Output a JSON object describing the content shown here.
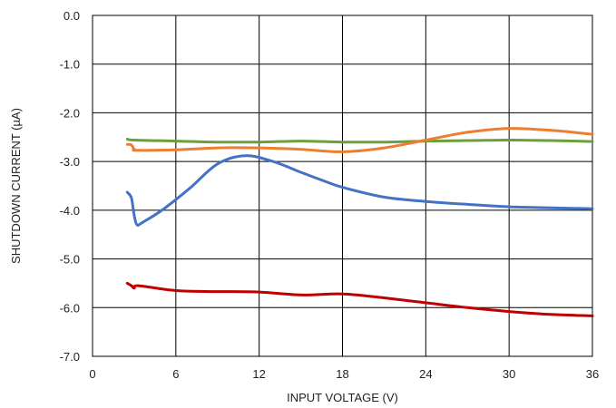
{
  "chart_data": {
    "type": "line",
    "title": "",
    "xlabel": "INPUT VOLTAGE (V)",
    "ylabel": "SHUTDOWN CURRENT (µA)",
    "xlim": [
      0,
      36
    ],
    "ylim": [
      -7.0,
      0.0
    ],
    "xticks": [
      0,
      6,
      12,
      18,
      24,
      30,
      36
    ],
    "xtick_labels": [
      "0",
      "6",
      "12",
      "18",
      "24",
      "30",
      "36"
    ],
    "yticks": [
      0,
      -1,
      -2,
      -3,
      -4,
      -5,
      -6,
      -7
    ],
    "ytick_labels": [
      "0.0",
      "-1.0",
      "-2.0",
      "-3.0",
      "-4.0",
      "-5.0",
      "-6.0",
      "-7.0"
    ],
    "grid": true,
    "legend": "none",
    "series": [
      {
        "color": "#6a9f3c",
        "x": [
          2.5,
          3,
          6,
          9,
          12,
          15,
          18,
          21,
          24,
          27,
          30,
          33,
          36
        ],
        "y": [
          -2.54,
          -2.56,
          -2.58,
          -2.6,
          -2.6,
          -2.58,
          -2.6,
          -2.6,
          -2.58,
          -2.57,
          -2.56,
          -2.57,
          -2.59
        ]
      },
      {
        "color": "#ed7d31",
        "x": [
          2.5,
          2.8,
          3.0,
          3.2,
          6,
          9,
          12,
          15,
          18,
          21,
          24,
          27,
          30,
          33,
          36
        ],
        "y": [
          -2.65,
          -2.66,
          -2.75,
          -2.77,
          -2.76,
          -2.72,
          -2.72,
          -2.75,
          -2.8,
          -2.72,
          -2.56,
          -2.4,
          -2.32,
          -2.36,
          -2.44
        ]
      },
      {
        "color": "#4472c4",
        "x": [
          2.5,
          2.8,
          3.0,
          3.2,
          3.6,
          5,
          7,
          9,
          11,
          13,
          15,
          16.5,
          18,
          21,
          24,
          27,
          30,
          33,
          36
        ],
        "y": [
          -3.63,
          -3.75,
          -4.1,
          -4.3,
          -4.25,
          -4.0,
          -3.55,
          -3.05,
          -2.88,
          -3.0,
          -3.22,
          -3.38,
          -3.53,
          -3.73,
          -3.82,
          -3.88,
          -3.93,
          -3.95,
          -3.97
        ]
      },
      {
        "color": "#c00000",
        "x": [
          2.5,
          2.8,
          3.0,
          3.3,
          6,
          9,
          12,
          15,
          18,
          21,
          24,
          27,
          30,
          33,
          36
        ],
        "y": [
          -5.5,
          -5.55,
          -5.6,
          -5.55,
          -5.65,
          -5.67,
          -5.68,
          -5.74,
          -5.72,
          -5.8,
          -5.9,
          -6.0,
          -6.08,
          -6.14,
          -6.17
        ]
      }
    ]
  }
}
